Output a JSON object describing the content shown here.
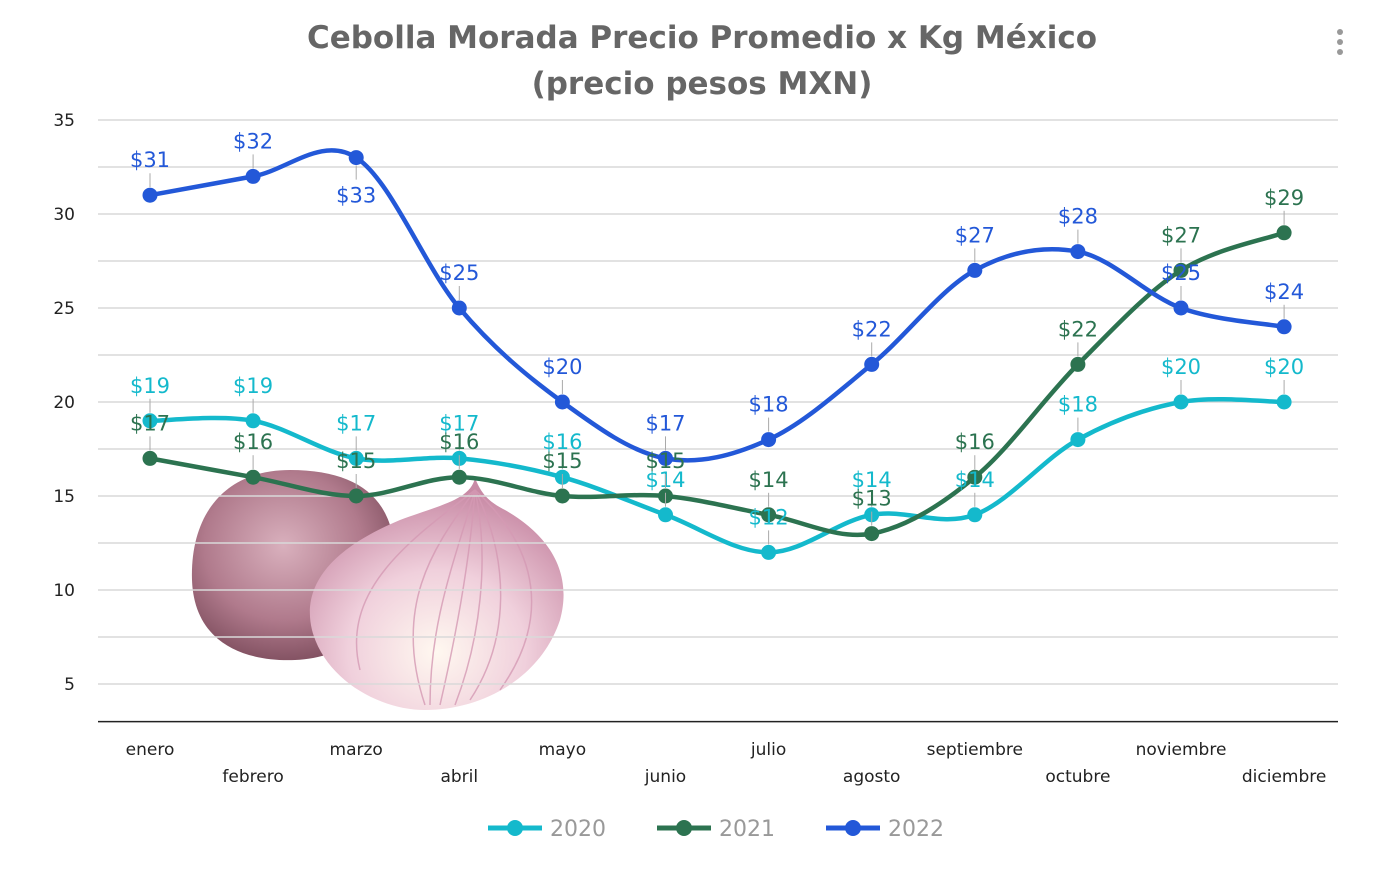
{
  "chart_data": {
    "type": "line",
    "title": "Cebolla Morada Precio Promedio x Kg México",
    "subtitle": "(precio pesos MXN)",
    "categories": [
      "enero",
      "febrero",
      "marzo",
      "abril",
      "mayo",
      "junio",
      "julio",
      "agosto",
      "septiembre",
      "octubre",
      "noviembre",
      "diciembre"
    ],
    "series": [
      {
        "name": "2020",
        "color": "#14b9cc",
        "values": [
          19,
          19,
          17,
          17,
          16,
          14,
          12,
          14,
          14,
          18,
          20,
          20
        ]
      },
      {
        "name": "2021",
        "color": "#2c7350",
        "values": [
          17,
          16,
          15,
          16,
          15,
          15,
          14,
          13,
          16,
          22,
          27,
          29
        ]
      },
      {
        "name": "2022",
        "color": "#2358d8",
        "values": [
          31,
          32,
          33,
          25,
          20,
          17,
          18,
          22,
          27,
          28,
          25,
          24
        ]
      }
    ],
    "data_label_prefix": "$",
    "yticks": [
      5,
      10,
      15,
      20,
      25,
      30,
      35
    ],
    "ylim": [
      3,
      35
    ],
    "grid": true,
    "smooth": true,
    "legend": "bottom",
    "xlabel": "",
    "ylabel": ""
  },
  "menu": {
    "icon": "more-vertical-icon"
  }
}
